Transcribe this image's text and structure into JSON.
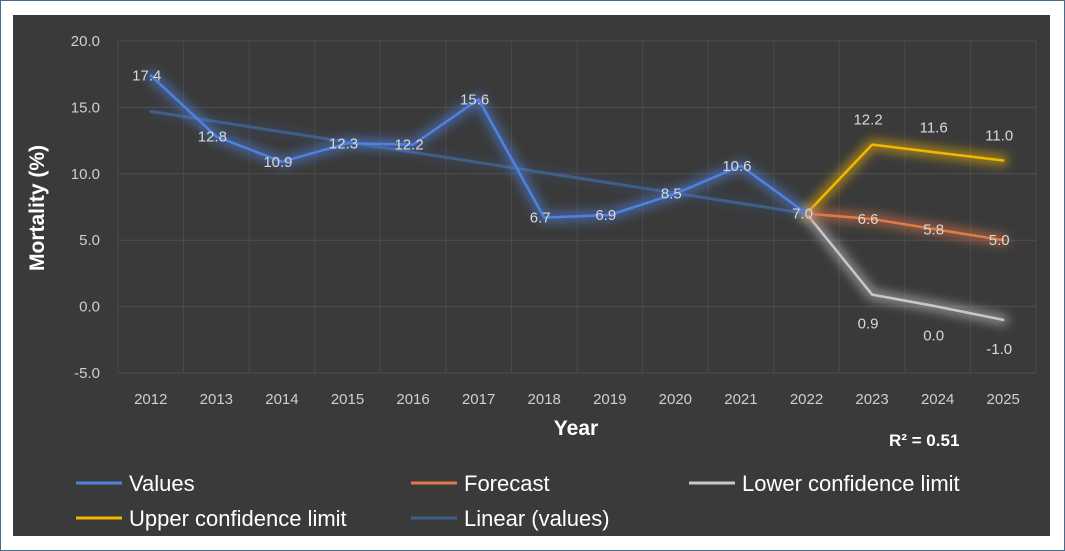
{
  "chart_data": {
    "type": "line",
    "title": "",
    "xlabel": "Year",
    "ylabel": "Mortality (%)",
    "ylim": [
      -5,
      20
    ],
    "yticks": [
      "20.0",
      "15.0",
      "10.0",
      "5.0",
      "0.0",
      "-5.0"
    ],
    "ytick_values": [
      20,
      15,
      10,
      5,
      0,
      -5
    ],
    "x": [
      "2012",
      "2013",
      "2014",
      "2015",
      "2016",
      "2017",
      "2018",
      "2019",
      "2020",
      "2021",
      "2022",
      "2023",
      "2024",
      "2025"
    ],
    "grid": true,
    "legend_position": "bottom",
    "annotation": "R² = 0.51",
    "series": [
      {
        "name": "Values",
        "color": "#4f81e0",
        "x": [
          "2012",
          "2013",
          "2014",
          "2015",
          "2016",
          "2017",
          "2018",
          "2019",
          "2020",
          "2021",
          "2022"
        ],
        "values": [
          17.4,
          12.8,
          10.9,
          12.3,
          12.2,
          15.6,
          6.7,
          6.9,
          8.5,
          10.6,
          7.0
        ],
        "labels": [
          "17.4",
          "12.8",
          "10.9",
          "12.3",
          "12.2",
          "15.6",
          "6.7",
          "6.9",
          "8.5",
          "10.6",
          "7.0"
        ]
      },
      {
        "name": "Forecast",
        "color": "#e07a4a",
        "x": [
          "2022",
          "2023",
          "2024",
          "2025"
        ],
        "values": [
          7.0,
          6.6,
          5.8,
          5.0
        ],
        "labels": [
          "",
          "6.6",
          "5.8",
          "5.0"
        ]
      },
      {
        "name": "Lower confidence limit",
        "color": "#c8c8c8",
        "x": [
          "2022",
          "2023",
          "2024",
          "2025"
        ],
        "values": [
          7.0,
          0.9,
          0.0,
          -1.0
        ],
        "labels": [
          "",
          "0.9",
          "0.0",
          "-1.0"
        ]
      },
      {
        "name": "Upper confidence limit",
        "color": "#f2b700",
        "x": [
          "2022",
          "2023",
          "2024",
          "2025"
        ],
        "values": [
          7.0,
          12.2,
          11.6,
          11.0
        ],
        "labels": [
          "",
          "12.2",
          "11.6",
          "11.0"
        ]
      },
      {
        "name": "Linear (values)",
        "color": "#3f5e8a",
        "x": [
          "2012",
          "2022"
        ],
        "values": [
          14.7,
          7.0
        ],
        "labels": [
          "",
          ""
        ]
      }
    ]
  }
}
